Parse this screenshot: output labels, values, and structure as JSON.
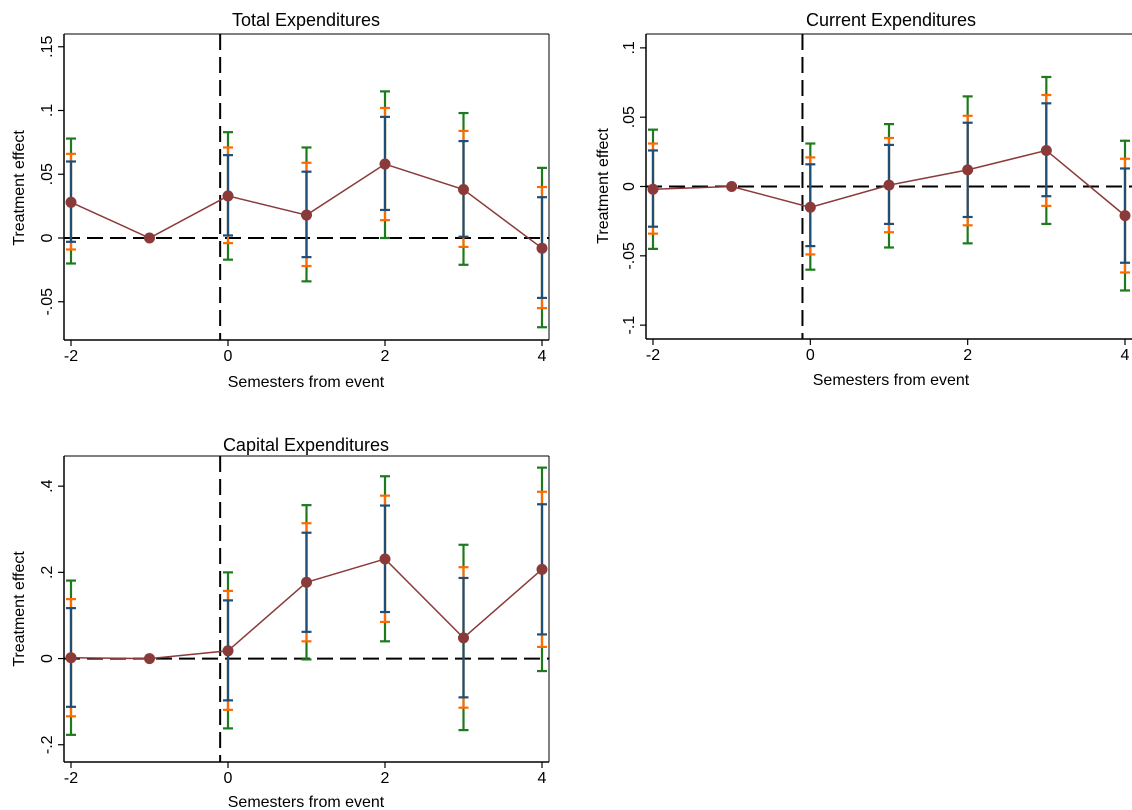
{
  "colors": {
    "ci_90": "#1f4e79",
    "ci_95": "#ff6a00",
    "ci_99": "#1d7a1d",
    "estimate": "#8b3a3a",
    "reference": "#000000"
  },
  "chart_data": [
    {
      "type": "line",
      "title": "Total Expenditures",
      "xlabel": "Semesters from event",
      "ylabel": "Treatment effect",
      "xlim": [
        -2,
        4
      ],
      "ylim": [
        -0.08,
        0.16
      ],
      "xticks": [
        -2,
        0,
        2,
        4
      ],
      "xtick_labels": [
        "-2",
        "0",
        "2",
        "4"
      ],
      "yticks": [
        -0.05,
        0,
        0.05,
        0.1,
        0.15
      ],
      "ytick_labels": [
        "-.05",
        "0",
        ".05",
        ".1",
        ".15"
      ],
      "event_line_x": -0.1,
      "reference_y": 0,
      "grid": false,
      "series": [
        {
          "x": [
            -2,
            -1,
            0,
            1,
            2,
            3,
            4
          ],
          "y": [
            0.028,
            0,
            0.033,
            0.018,
            0.058,
            0.038,
            -0.008
          ],
          "ci_90": [
            [
              -0.003,
              0.06
            ],
            [
              0,
              0
            ],
            [
              0.002,
              0.065
            ],
            [
              -0.015,
              0.052
            ],
            [
              0.022,
              0.095
            ],
            [
              0.001,
              0.076
            ],
            [
              -0.047,
              0.032
            ]
          ],
          "ci_95": [
            [
              -0.009,
              0.066
            ],
            [
              0,
              0
            ],
            [
              -0.004,
              0.071
            ],
            [
              -0.022,
              0.059
            ],
            [
              0.014,
              0.102
            ],
            [
              -0.007,
              0.084
            ],
            [
              -0.055,
              0.04
            ]
          ],
          "ci_99": [
            [
              -0.02,
              0.078
            ],
            [
              0,
              0
            ],
            [
              -0.017,
              0.083
            ],
            [
              -0.034,
              0.071
            ],
            [
              0.0,
              0.115
            ],
            [
              -0.021,
              0.098
            ],
            [
              -0.07,
              0.055
            ]
          ]
        }
      ]
    },
    {
      "type": "line",
      "title": "Current Expenditures",
      "xlabel": "Semesters from event",
      "ylabel": "Treatment effect",
      "xlim": [
        -2,
        4
      ],
      "ylim": [
        -0.11,
        0.11
      ],
      "xticks": [
        -2,
        0,
        2,
        4
      ],
      "xtick_labels": [
        "-2",
        "0",
        "2",
        "4"
      ],
      "yticks": [
        -0.1,
        -0.05,
        0,
        0.05,
        0.1
      ],
      "ytick_labels": [
        "-.1",
        "-.05",
        "0",
        ".05",
        ".1"
      ],
      "event_line_x": -0.1,
      "reference_y": 0,
      "grid": false,
      "series": [
        {
          "x": [
            -2,
            -1,
            0,
            1,
            2,
            3,
            4
          ],
          "y": [
            -0.002,
            0,
            -0.015,
            0.001,
            0.012,
            0.026,
            -0.021
          ],
          "ci_90": [
            [
              -0.029,
              0.026
            ],
            [
              0,
              0
            ],
            [
              -0.043,
              0.016
            ],
            [
              -0.027,
              0.03
            ],
            [
              -0.022,
              0.046
            ],
            [
              -0.007,
              0.06
            ],
            [
              -0.055,
              0.013
            ]
          ],
          "ci_95": [
            [
              -0.034,
              0.031
            ],
            [
              0,
              0
            ],
            [
              -0.049,
              0.021
            ],
            [
              -0.033,
              0.035
            ],
            [
              -0.028,
              0.051
            ],
            [
              -0.014,
              0.066
            ],
            [
              -0.062,
              0.02
            ]
          ],
          "ci_99": [
            [
              -0.045,
              0.041
            ],
            [
              0,
              0
            ],
            [
              -0.06,
              0.031
            ],
            [
              -0.044,
              0.045
            ],
            [
              -0.041,
              0.065
            ],
            [
              -0.027,
              0.079
            ],
            [
              -0.075,
              0.033
            ]
          ]
        }
      ]
    },
    {
      "type": "line",
      "title": "Capital Expenditures",
      "xlabel": "Semesters from event",
      "ylabel": "Treatment effect",
      "xlim": [
        -2,
        4
      ],
      "ylim": [
        -0.24,
        0.47
      ],
      "xticks": [
        -2,
        0,
        2,
        4
      ],
      "xtick_labels": [
        "-2",
        "0",
        "2",
        "4"
      ],
      "yticks": [
        -0.2,
        0,
        0.2,
        0.4
      ],
      "ytick_labels": [
        "-.2",
        "0",
        ".2",
        ".4"
      ],
      "event_line_x": -0.1,
      "reference_y": 0,
      "grid": false,
      "series": [
        {
          "x": [
            -2,
            -1,
            0,
            1,
            2,
            3,
            4
          ],
          "y": [
            0.002,
            0,
            0.018,
            0.177,
            0.231,
            0.048,
            0.207
          ],
          "ci_90": [
            [
              -0.112,
              0.117
            ],
            [
              0,
              0
            ],
            [
              -0.097,
              0.135
            ],
            [
              0.062,
              0.292
            ],
            [
              0.108,
              0.355
            ],
            [
              -0.09,
              0.187
            ],
            [
              0.056,
              0.358
            ]
          ],
          "ci_95": [
            [
              -0.134,
              0.138
            ],
            [
              0,
              0
            ],
            [
              -0.119,
              0.157
            ],
            [
              0.04,
              0.314
            ],
            [
              0.085,
              0.378
            ],
            [
              -0.114,
              0.212
            ],
            [
              0.027,
              0.387
            ]
          ],
          "ci_99": [
            [
              -0.177,
              0.181
            ],
            [
              0,
              0
            ],
            [
              -0.162,
              0.2
            ],
            [
              -0.002,
              0.356
            ],
            [
              0.04,
              0.423
            ],
            [
              -0.166,
              0.264
            ],
            [
              -0.029,
              0.443
            ]
          ]
        }
      ]
    }
  ]
}
